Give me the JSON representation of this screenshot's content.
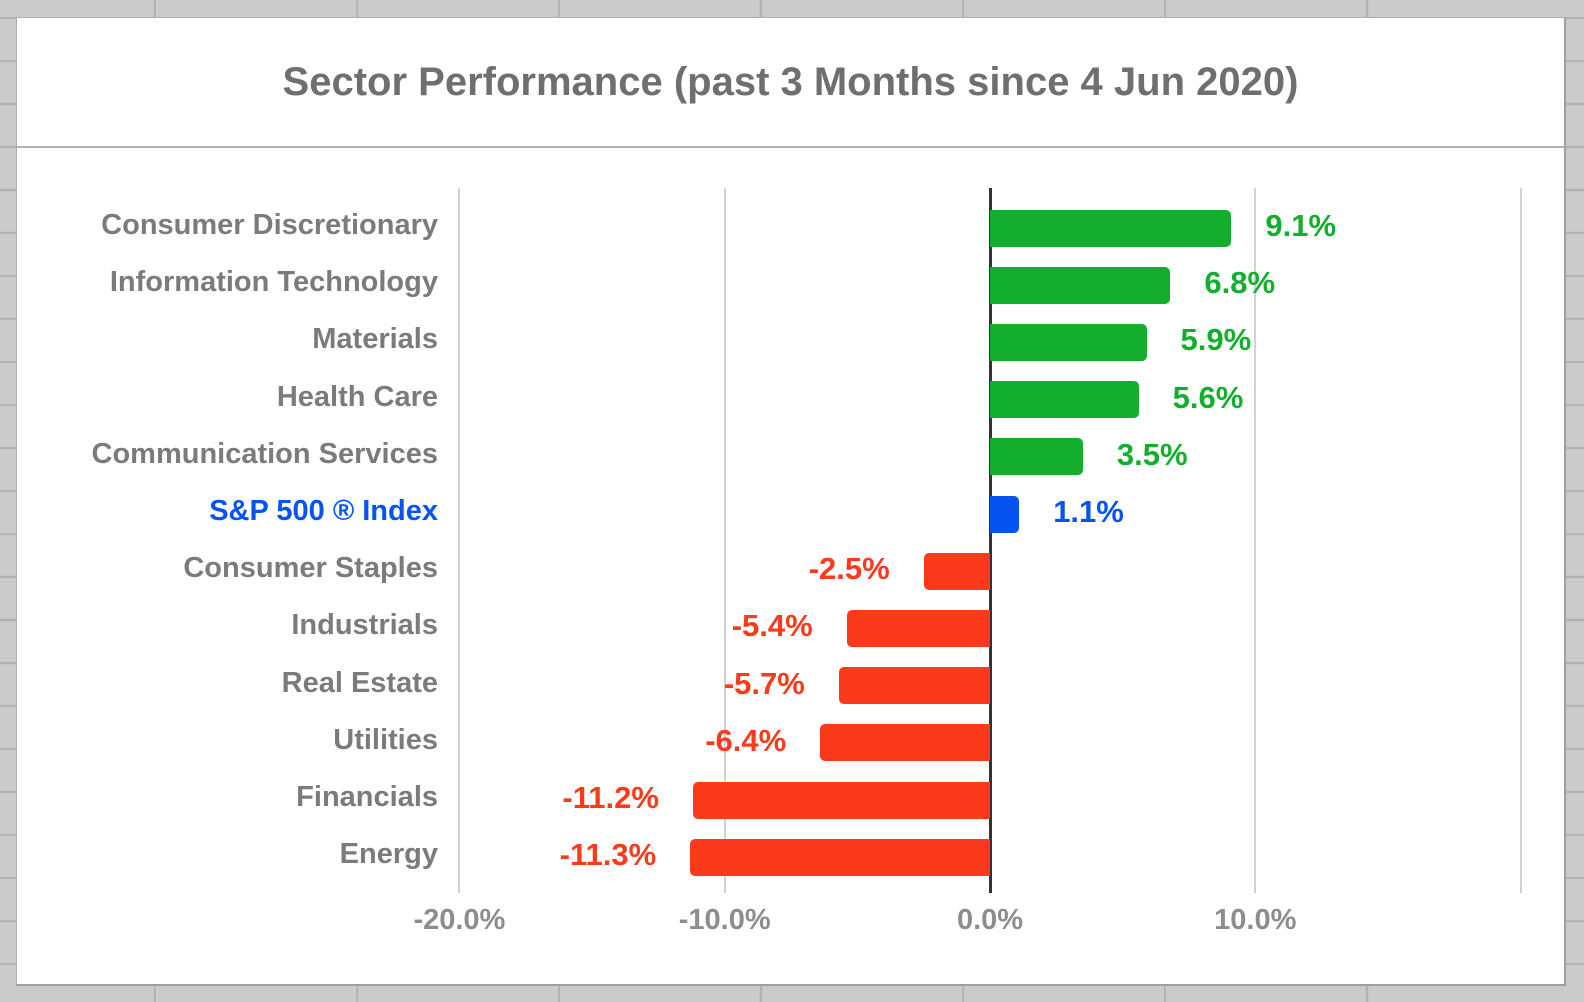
{
  "title": "Sector Performance (past 3 Months since 4 Jun 2020)",
  "colors": {
    "positive": "#13ae2d",
    "negative": "#fb3a1c",
    "index": "#0653f1",
    "category_label": "#7b7b7b",
    "title_text": "#6f6f6f",
    "axis_tick_label": "#8d8d8d",
    "gridline": "#d2d2d2",
    "zero_axis": "#333333",
    "sheet_margin": "#cbcbcb",
    "sheet_grid_border": "#b1b1b1"
  },
  "chart_data": {
    "type": "bar",
    "orientation": "horizontal",
    "title": "Sector Performance (past 3 Months since 4 Jun 2020)",
    "xlabel": "",
    "ylabel": "",
    "xlim": [
      -20,
      20
    ],
    "grid": "vertical-only",
    "legend": "none",
    "rows": [
      {
        "category": "Consumer Discretionary",
        "value": 9.1,
        "label": "9.1%",
        "type": "positive"
      },
      {
        "category": "Information Technology",
        "value": 6.8,
        "label": "6.8%",
        "type": "positive"
      },
      {
        "category": "Materials",
        "value": 5.9,
        "label": "5.9%",
        "type": "positive"
      },
      {
        "category": "Health Care",
        "value": 5.6,
        "label": "5.6%",
        "type": "positive"
      },
      {
        "category": "Communication Services",
        "value": 3.5,
        "label": "3.5%",
        "type": "positive"
      },
      {
        "category": "S&P 500 ® Index",
        "value": 1.1,
        "label": "1.1%",
        "type": "index"
      },
      {
        "category": "Consumer Staples",
        "value": -2.5,
        "label": "-2.5%",
        "type": "negative"
      },
      {
        "category": "Industrials",
        "value": -5.4,
        "label": "-5.4%",
        "type": "negative"
      },
      {
        "category": "Real Estate",
        "value": -5.7,
        "label": "-5.7%",
        "type": "negative"
      },
      {
        "category": "Utilities",
        "value": -6.4,
        "label": "-6.4%",
        "type": "negative"
      },
      {
        "category": "Financials",
        "value": -11.2,
        "label": "-11.2%",
        "type": "negative"
      },
      {
        "category": "Energy",
        "value": -11.3,
        "label": "-11.3%",
        "type": "negative"
      }
    ],
    "x_ticks": [
      {
        "pct": -20,
        "label": "-20.0%"
      },
      {
        "pct": -10,
        "label": "-10.0%"
      },
      {
        "pct": 0,
        "label": "0.0%"
      },
      {
        "pct": 10,
        "label": "10.0%"
      },
      {
        "pct": 20,
        "label": ""
      }
    ]
  }
}
